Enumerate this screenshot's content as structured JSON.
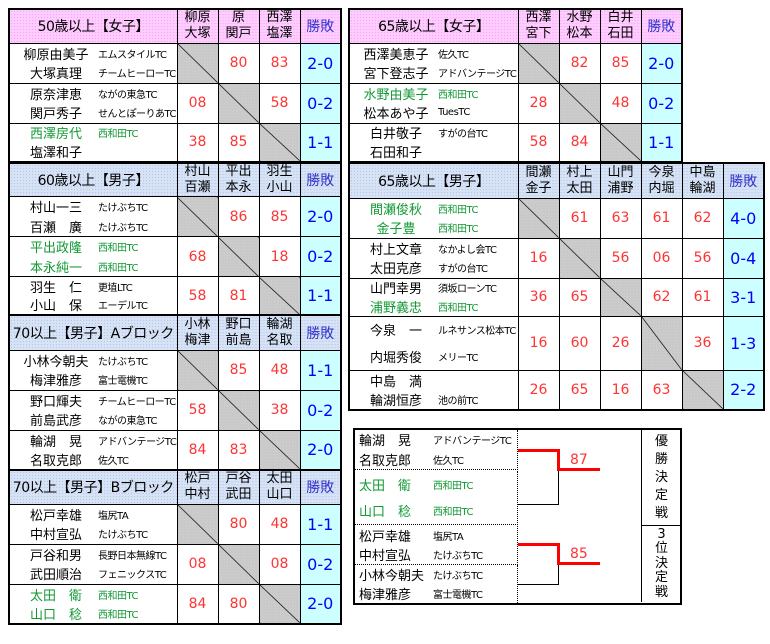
{
  "colors": {
    "womens_header": "#ffccff",
    "mens_header": "#d6e2f5",
    "result_bg": "#ccffff",
    "score": "#ff3333",
    "result_text": "#0000ff",
    "highlight_team": "#119933"
  },
  "win_loss_label": "勝敗",
  "tables": [
    {
      "id": "w50",
      "kind": "w",
      "title": "50歳以上【女子】",
      "cols": [
        [
          "柳原",
          "大塚"
        ],
        [
          "原",
          "関戸"
        ],
        [
          "西澤",
          "塩澤"
        ]
      ],
      "rows": [
        {
          "players": [
            {
              "name": "柳原由美子",
              "club": "エムスタイルTC"
            },
            {
              "name": "大塚真理",
              "club": "チームヒーローTC"
            }
          ],
          "scores": [
            null,
            "80",
            "83"
          ],
          "result": "2-0"
        },
        {
          "players": [
            {
              "name": "原奈津恵",
              "club": "ながの東急TC"
            },
            {
              "name": "関戸秀子",
              "club": "せんとぽーりあTC"
            }
          ],
          "scores": [
            "08",
            null,
            "58"
          ],
          "result": "0-2"
        },
        {
          "players": [
            {
              "name": "西澤房代",
              "club": "西和田TC",
              "highlight": true
            },
            {
              "name": "塩澤和子",
              "club": ""
            }
          ],
          "scores": [
            "38",
            "85",
            null
          ],
          "result": "1-1"
        }
      ]
    },
    {
      "id": "m60",
      "kind": "m",
      "title": "60歳以上【男子】",
      "cols": [
        [
          "村山",
          "百瀬"
        ],
        [
          "平出",
          "本永"
        ],
        [
          "羽生",
          "小山"
        ]
      ],
      "rows": [
        {
          "players": [
            {
              "name": "村山一三",
              "club": "たけぶちTC"
            },
            {
              "name": "百瀬　廣",
              "club": "たけぶちTC"
            }
          ],
          "scores": [
            null,
            "86",
            "85"
          ],
          "result": "2-0"
        },
        {
          "players": [
            {
              "name": "平出政隆",
              "club": "西和田TC",
              "highlight": true
            },
            {
              "name": "本永純一",
              "club": "西和田TC",
              "highlight": true
            }
          ],
          "scores": [
            "68",
            null,
            "18"
          ],
          "result": "0-2"
        },
        {
          "players": [
            {
              "name": "羽生　仁",
              "club": "更埴LTC"
            },
            {
              "name": "小山　保",
              "club": "エーデルTC"
            }
          ],
          "scores": [
            "58",
            "81",
            null
          ],
          "result": "1-1"
        }
      ]
    },
    {
      "id": "m70a",
      "kind": "m",
      "title": "70以上【男子】Aブロック",
      "cols": [
        [
          "小林",
          "梅津"
        ],
        [
          "野口",
          "前島"
        ],
        [
          "輪湖",
          "名取"
        ]
      ],
      "rows": [
        {
          "players": [
            {
              "name": "小林今朝夫",
              "club": "たけぶちTC"
            },
            {
              "name": "梅津雅彦",
              "club": "富士電機TC"
            }
          ],
          "scores": [
            null,
            "85",
            "48"
          ],
          "result": "1-1"
        },
        {
          "players": [
            {
              "name": "野口輝夫",
              "club": "チームヒーローTC"
            },
            {
              "name": "前島武彦",
              "club": "ながの東急TC"
            }
          ],
          "scores": [
            "58",
            null,
            "38"
          ],
          "result": "0-2"
        },
        {
          "players": [
            {
              "name": "輪湖　晃",
              "club": "アドバンテージTC"
            },
            {
              "name": "名取克郎",
              "club": "佐久TC"
            }
          ],
          "scores": [
            "84",
            "83",
            null
          ],
          "result": "2-0"
        }
      ]
    },
    {
      "id": "m70b",
      "kind": "m",
      "title": "70以上【男子】Bブロック",
      "cols": [
        [
          "松戸",
          "中村"
        ],
        [
          "戸谷",
          "武田"
        ],
        [
          "太田",
          "山口"
        ]
      ],
      "rows": [
        {
          "players": [
            {
              "name": "松戸幸雄",
              "club": "塩尻TA"
            },
            {
              "name": "中村宣弘",
              "club": "たけぶちTC"
            }
          ],
          "scores": [
            null,
            "80",
            "48"
          ],
          "result": "1-1"
        },
        {
          "players": [
            {
              "name": "戸谷和男",
              "club": "長野日本無線TC"
            },
            {
              "name": "武田順治",
              "club": "フェニックスTC"
            }
          ],
          "scores": [
            "08",
            null,
            "08"
          ],
          "result": "0-2"
        },
        {
          "players": [
            {
              "name": "太田　衛",
              "club": "西和田TC",
              "highlight": true
            },
            {
              "name": "山口　稔",
              "club": "西和田TC",
              "highlight": true
            }
          ],
          "scores": [
            "84",
            "80",
            null
          ],
          "result": "2-0"
        }
      ]
    },
    {
      "id": "w65",
      "kind": "w",
      "title": "65歳以上【女子】",
      "cols": [
        [
          "西澤",
          "宮下"
        ],
        [
          "水野",
          "松本"
        ],
        [
          "白井",
          "石田"
        ]
      ],
      "rows": [
        {
          "players": [
            {
              "name": "西澤美恵子",
              "club": "佐久TC"
            },
            {
              "name": "宮下登志子",
              "club": "アドバンテージTC"
            }
          ],
          "scores": [
            null,
            "82",
            "85"
          ],
          "result": "2-0"
        },
        {
          "players": [
            {
              "name": "水野由美子",
              "club": "西和田TC",
              "highlight": true
            },
            {
              "name": "松本あや子",
              "club": "TuesTC"
            }
          ],
          "scores": [
            "28",
            null,
            "48"
          ],
          "result": "0-2"
        },
        {
          "players": [
            {
              "name": "白井敬子",
              "club": "すがの台TC"
            },
            {
              "name": "石田和子",
              "club": ""
            }
          ],
          "scores": [
            "58",
            "84",
            null
          ],
          "result": "1-1"
        }
      ]
    },
    {
      "id": "m65",
      "kind": "m",
      "title": "65歳以上【男子】",
      "cols": [
        [
          "間瀬",
          "金子"
        ],
        [
          "村上",
          "太田"
        ],
        [
          "山門",
          "浦野"
        ],
        [
          "今泉",
          "内堀"
        ],
        [
          "中島",
          "輪湖"
        ]
      ],
      "rows": [
        {
          "players": [
            {
              "name": "間瀬俊秋",
              "club": "西和田TC",
              "highlight": true
            },
            {
              "name": "金子豊",
              "club": "西和田TC",
              "highlight": true
            }
          ],
          "scores": [
            null,
            "61",
            "63",
            "61",
            "62"
          ],
          "result": "4-0"
        },
        {
          "players": [
            {
              "name": "村上文章",
              "club": "なかよし会TC"
            },
            {
              "name": "太田克彦",
              "club": "すがの台TC"
            }
          ],
          "scores": [
            "16",
            null,
            "56",
            "06",
            "56"
          ],
          "result": "0-4"
        },
        {
          "players": [
            {
              "name": "山門幸男",
              "club": "須坂ローンTC"
            },
            {
              "name": "浦野義忠",
              "club": "西和田TC",
              "highlight": true
            }
          ],
          "scores": [
            "36",
            "65",
            null,
            "62",
            "61"
          ],
          "result": "3-1"
        },
        {
          "players": [
            {
              "name": "今泉　一",
              "club": "ルネサンス松本TC"
            },
            {
              "name": "内堀秀俊",
              "club": "メリーTC"
            }
          ],
          "scores": [
            "16",
            "60",
            "26",
            null,
            "36"
          ],
          "result": "1-3"
        },
        {
          "players": [
            {
              "name": "中島　満",
              "club": ""
            },
            {
              "name": "輪湖恒彦",
              "club": "池の前TC"
            }
          ],
          "scores": [
            "26",
            "65",
            "16",
            "63",
            null
          ],
          "result": "2-2"
        }
      ]
    }
  ],
  "bracket": {
    "final": {
      "label": "優勝決定戦",
      "score": "87",
      "pairs": [
        [
          {
            "name": "輪湖　晃",
            "club": "アドバンテージTC"
          },
          {
            "name": "名取克郎",
            "club": "佐久TC"
          }
        ],
        [
          {
            "name": "太田　衛",
            "club": "西和田TC",
            "highlight": true
          },
          {
            "name": "山口　稔",
            "club": "西和田TC",
            "highlight": true
          }
        ]
      ]
    },
    "third": {
      "label": "3位決定戦",
      "score": "85",
      "pairs": [
        [
          {
            "name": "松戸幸雄",
            "club": "塩尻TA"
          },
          {
            "name": "中村宣弘",
            "club": "たけぶちTC"
          }
        ],
        [
          {
            "name": "小林今朝夫",
            "club": "たけぶちTC"
          },
          {
            "name": "梅津雅彦",
            "club": "富士電機TC"
          }
        ]
      ]
    }
  }
}
